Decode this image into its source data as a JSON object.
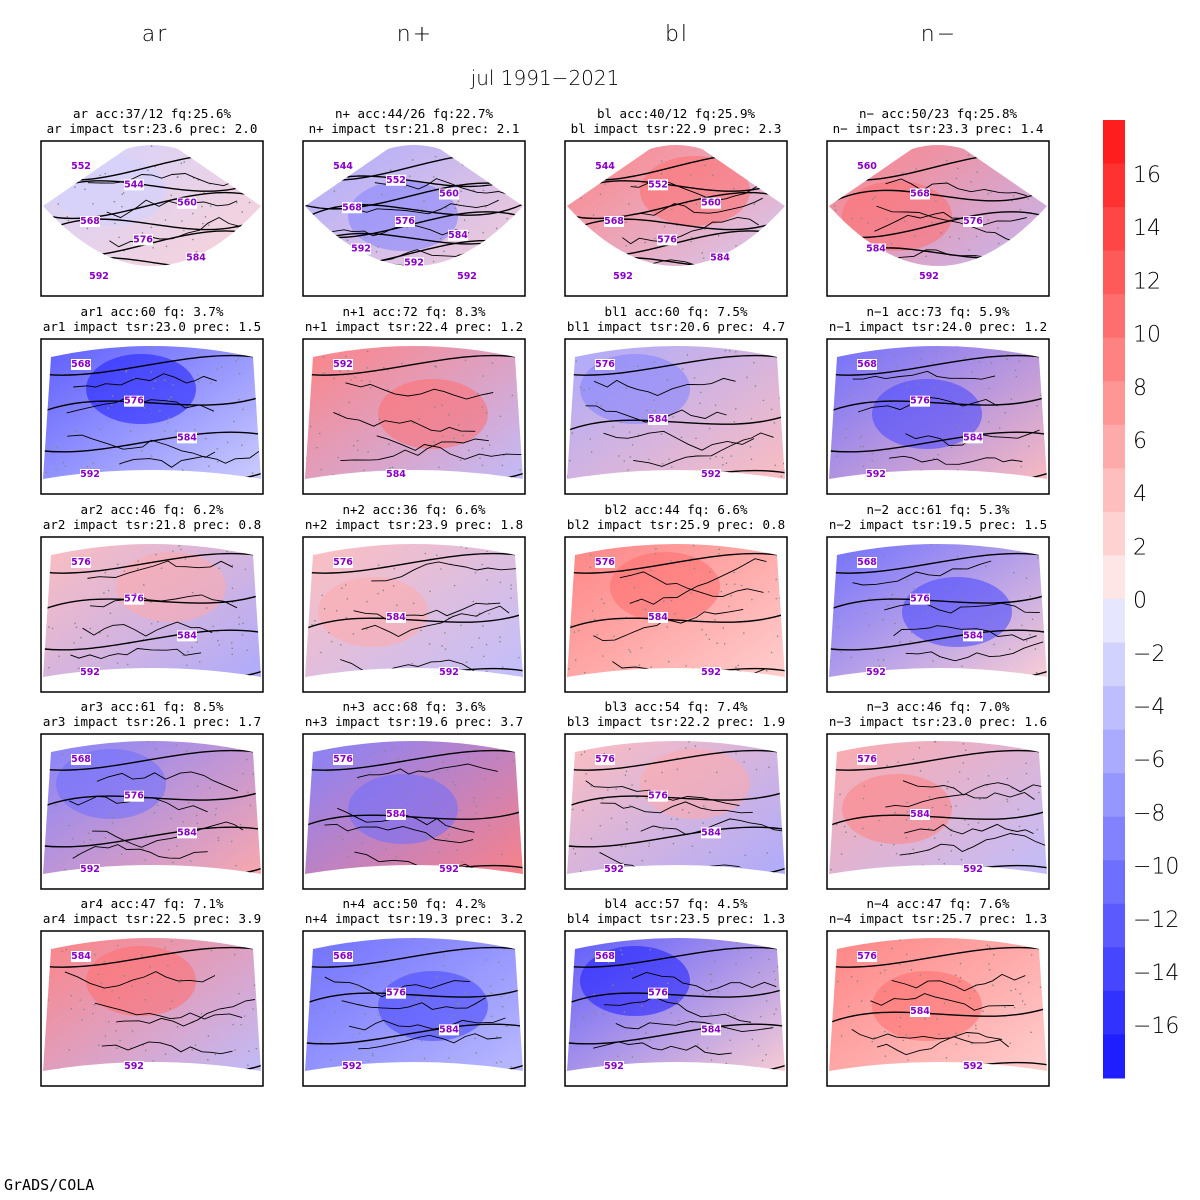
{
  "column_titles": [
    "ar",
    "n+",
    "bl",
    "n−"
  ],
  "suptitle": "jul 1991−2021",
  "footer": "GrADS/COLA",
  "colors": {
    "frame": "#000000",
    "contour": "#000000",
    "contour_label": "#8a00c8",
    "coast": "#000000",
    "dots": "#888888"
  },
  "colorbar": {
    "tick_labels": [
      "16",
      "14",
      "12",
      "10",
      "8",
      "6",
      "4",
      "2",
      "0",
      "−2",
      "−4",
      "−6",
      "−8",
      "−10",
      "−12",
      "−14",
      "−16"
    ],
    "levels_top_to_bottom": [
      "#ff1e1e",
      "#ff3232",
      "#ff4646",
      "#ff5a5a",
      "#ff6e6e",
      "#ff8282",
      "#ff9696",
      "#ffaaaa",
      "#ffbebe",
      "#ffd2d2",
      "#ffe6e6",
      "#e6e6ff",
      "#d2d2ff",
      "#bebeff",
      "#aaaaff",
      "#9696ff",
      "#8282ff",
      "#6e6eff",
      "#5a5aff",
      "#4646ff",
      "#3232ff",
      "#1e1eff"
    ]
  },
  "panels": [
    {
      "id": "ar",
      "title1": "ar acc:37/12 fq:25.6%",
      "title2": "ar impact tsr:23.6 prec: 2.0",
      "shape": "wide",
      "anomaly_shade": [
        -2,
        2
      ],
      "labels": [
        "552",
        "544",
        "560",
        "568",
        "576",
        "584",
        "592"
      ]
    },
    {
      "id": "n+",
      "title1": "n+ acc:44/26 fq:22.7%",
      "title2": "n+ impact tsr:21.8 prec: 2.1",
      "shape": "wide",
      "anomaly_shade": [
        -6,
        2
      ],
      "labels": [
        "544",
        "552",
        "560",
        "568",
        "576",
        "584",
        "592",
        "592",
        "592"
      ]
    },
    {
      "id": "bl",
      "title1": "bl acc:40/12 fq:25.9%",
      "title2": "bl impact tsr:22.9 prec: 2.3",
      "shape": "wide",
      "anomaly_shade": [
        8,
        -2
      ],
      "labels": [
        "544",
        "552",
        "560",
        "568",
        "576",
        "584",
        "592"
      ]
    },
    {
      "id": "n-",
      "title1": "n− acc:50/23 fq:25.8%",
      "title2": "n− impact tsr:23.3 prec: 1.4",
      "shape": "wide",
      "anomaly_shade": [
        8,
        -4
      ],
      "labels": [
        "560",
        "568",
        "576",
        "584",
        "592"
      ]
    },
    {
      "id": "ar1",
      "title1": "ar1 acc:60 fq: 3.7%",
      "title2": "ar1 impact tsr:23.0 prec: 1.5",
      "shape": "eu",
      "anomaly_shade": [
        -12,
        -2
      ],
      "labels": [
        "568",
        "576",
        "584",
        "592"
      ]
    },
    {
      "id": "n+1",
      "title1": "n+1 acc:72 fq: 8.3%",
      "title2": "n+1 impact tsr:22.4 prec: 1.2",
      "shape": "eu",
      "anomaly_shade": [
        8,
        -4
      ],
      "labels": [
        "592",
        "584"
      ]
    },
    {
      "id": "bl1",
      "title1": "bl1 acc:60 fq: 7.5%",
      "title2": "bl1 impact tsr:20.6 prec: 4.7",
      "shape": "eu",
      "anomaly_shade": [
        -6,
        4
      ],
      "labels": [
        "576",
        "584",
        "592"
      ]
    },
    {
      "id": "n-1",
      "title1": "n−1 acc:73 fq: 5.9%",
      "title2": "n−1 impact tsr:24.0 prec: 1.2",
      "shape": "eu",
      "anomaly_shade": [
        -10,
        4
      ],
      "labels": [
        "568",
        "576",
        "584",
        "592"
      ]
    },
    {
      "id": "ar2",
      "title1": "ar2 acc:46 fq: 6.2%",
      "title2": "ar2 impact tsr:21.8 prec: 0.8",
      "shape": "eu",
      "anomaly_shade": [
        4,
        -6
      ],
      "labels": [
        "576",
        "576",
        "584",
        "592"
      ]
    },
    {
      "id": "n+2",
      "title1": "n+2 acc:36 fq: 6.6%",
      "title2": "n+2 impact tsr:23.9 prec: 1.8",
      "shape": "eu",
      "anomaly_shade": [
        4,
        -4
      ],
      "labels": [
        "576",
        "584",
        "592"
      ]
    },
    {
      "id": "bl2",
      "title1": "bl2 acc:44 fq: 6.6%",
      "title2": "bl2 impact tsr:25.9 prec: 0.8",
      "shape": "eu",
      "anomaly_shade": [
        8,
        2
      ],
      "labels": [
        "576",
        "584",
        "592"
      ]
    },
    {
      "id": "n-2",
      "title1": "n−2 acc:61 fq: 5.3%",
      "title2": "n−2 impact tsr:19.5 prec: 1.5",
      "shape": "eu",
      "anomaly_shade": [
        -10,
        2
      ],
      "labels": [
        "568",
        "576",
        "584",
        "592"
      ]
    },
    {
      "id": "ar3",
      "title1": "ar3 acc:61 fq: 8.5%",
      "title2": "ar3 impact tsr:26.1 prec: 1.7",
      "shape": "eu",
      "anomaly_shade": [
        -8,
        6
      ],
      "labels": [
        "568",
        "576",
        "584",
        "592"
      ]
    },
    {
      "id": "n+3",
      "title1": "n+3 acc:68 fq: 3.6%",
      "title2": "n+3 impact tsr:19.6 prec: 3.7",
      "shape": "eu",
      "anomaly_shade": [
        -8,
        8
      ],
      "labels": [
        "576",
        "584",
        "592"
      ]
    },
    {
      "id": "bl3",
      "title1": "bl3 acc:54 fq: 7.4%",
      "title2": "bl3 impact tsr:22.2 prec: 1.9",
      "shape": "eu",
      "anomaly_shade": [
        4,
        -6
      ],
      "labels": [
        "576",
        "576",
        "584",
        "592"
      ]
    },
    {
      "id": "n-3",
      "title1": "n−3 acc:46 fq: 7.0%",
      "title2": "n−3 impact tsr:23.0 prec: 1.6",
      "shape": "eu",
      "anomaly_shade": [
        6,
        -4
      ],
      "labels": [
        "576",
        "584",
        "592"
      ]
    },
    {
      "id": "ar4",
      "title1": "ar4 acc:47 fq: 7.1%",
      "title2": "ar4 impact tsr:22.5 prec: 3.9",
      "shape": "eu",
      "anomaly_shade": [
        8,
        -4
      ],
      "labels": [
        "584",
        "592"
      ]
    },
    {
      "id": "n+4",
      "title1": "n+4 acc:50 fq: 4.2%",
      "title2": "n+4 impact tsr:19.3 prec: 3.2",
      "shape": "eu",
      "anomaly_shade": [
        -10,
        -4
      ],
      "labels": [
        "568",
        "576",
        "584",
        "592"
      ]
    },
    {
      "id": "bl4",
      "title1": "bl4 acc:57 fq: 4.5%",
      "title2": "bl4 impact tsr:23.5 prec: 1.3",
      "shape": "eu",
      "anomaly_shade": [
        -12,
        2
      ],
      "labels": [
        "568",
        "576",
        "584",
        "592"
      ]
    },
    {
      "id": "n-4",
      "title1": "n−4 acc:47 fq: 7.6%",
      "title2": "n−4 impact tsr:25.7 prec: 1.3",
      "shape": "eu",
      "anomaly_shade": [
        8,
        2
      ],
      "labels": [
        "576",
        "584",
        "592"
      ]
    }
  ]
}
